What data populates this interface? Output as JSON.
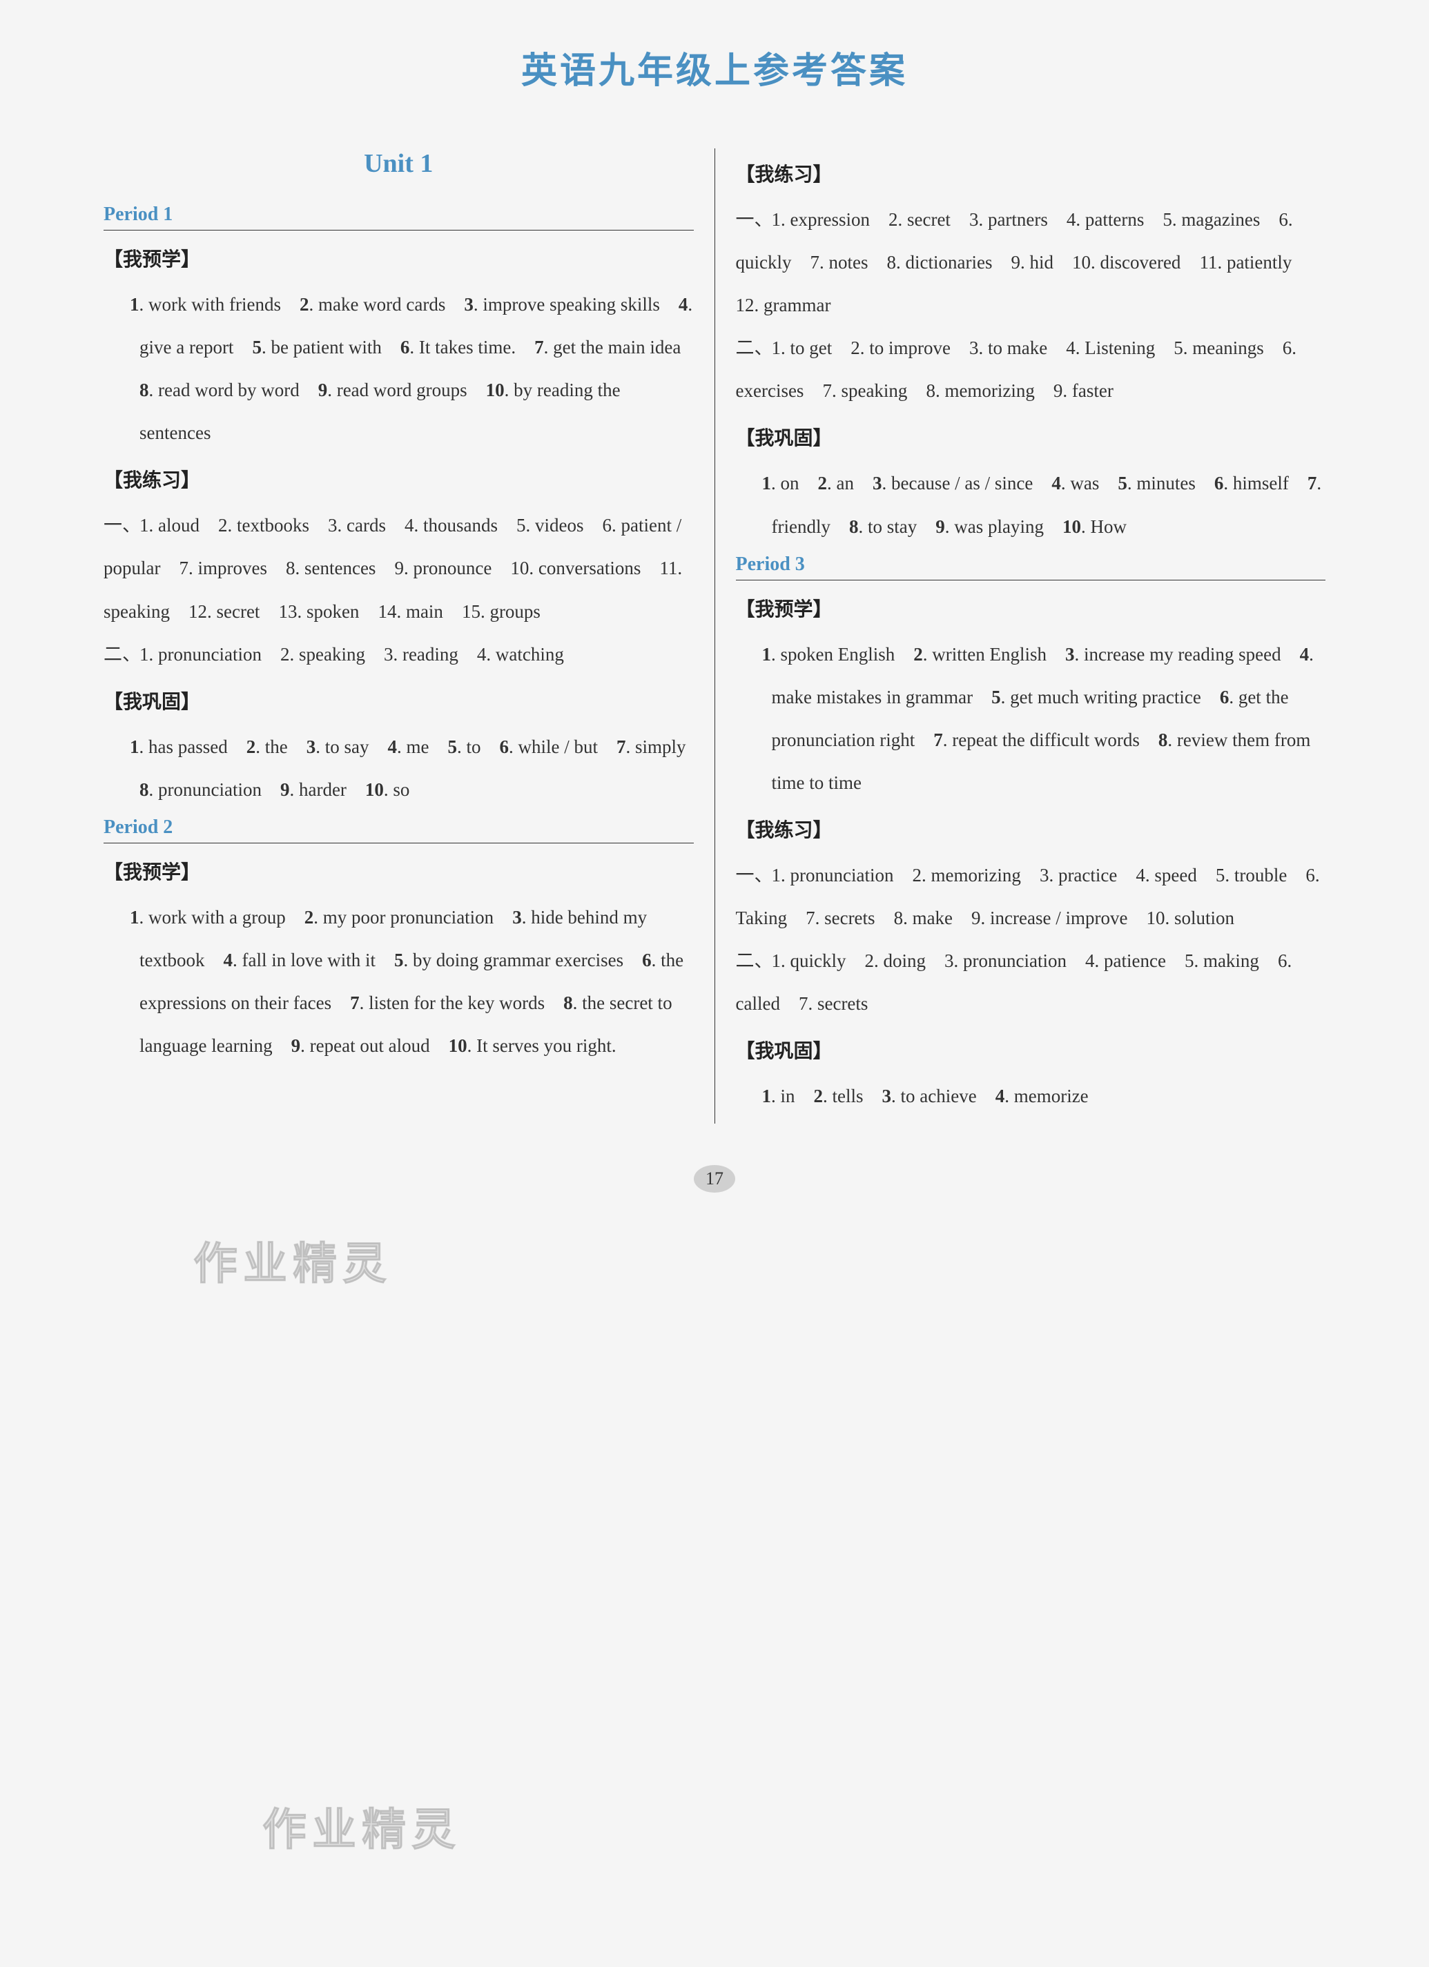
{
  "page_title": "英语九年级上参考答案",
  "page_number": "17",
  "watermark_text": "作业精灵",
  "colors": {
    "heading": "#4a90c2",
    "text": "#333333",
    "background": "#f5f5f5",
    "divider": "#333333"
  },
  "left_column": {
    "unit_title": "Unit 1",
    "sections": [
      {
        "period": "Period 1",
        "blocks": [
          {
            "header": "【我预学】",
            "groups": [
              {
                "prefix": "",
                "text": "1. work with friends　2. make word cards　3. improve speaking skills　4. give a report　5. be patient with　6. It takes time.　7. get the main idea　8. read word by word　9. read word groups　10. by reading the sentences"
              }
            ]
          },
          {
            "header": "【我练习】",
            "groups": [
              {
                "prefix": "一、",
                "text": "1. aloud　2. textbooks　3. cards　4. thousands　5. videos　6. patient / popular　7. improves　8. sentences　9. pronounce　10. conversations　11. speaking　12. secret　13. spoken　14. main　15. groups"
              },
              {
                "prefix": "二、",
                "text": "1. pronunciation　2. speaking　3. reading　4. watching"
              }
            ]
          },
          {
            "header": "【我巩固】",
            "groups": [
              {
                "prefix": "",
                "text": "1. has passed　2. the　3. to say　4. me　5. to　6. while / but　7. simply　8. pronunciation　9. harder　10. so"
              }
            ]
          }
        ]
      },
      {
        "period": "Period 2",
        "blocks": [
          {
            "header": "【我预学】",
            "groups": [
              {
                "prefix": "",
                "text": "1. work with a group　2. my poor pronunciation　3. hide behind my textbook　4. fall in love with it　5. by doing grammar exercises　6. the expressions on their faces　7. listen for the key words　8. the secret to language learning　9. repeat out aloud　10. It serves you right."
              }
            ]
          }
        ]
      }
    ]
  },
  "right_column": {
    "sections": [
      {
        "period": "",
        "blocks": [
          {
            "header": "【我练习】",
            "groups": [
              {
                "prefix": "一、",
                "text": "1. expression　2. secret　3. partners　4. patterns　5. magazines　6. quickly　7. notes　8. dictionaries　9. hid　10. discovered　11. patiently　12. grammar"
              },
              {
                "prefix": "二、",
                "text": "1. to get　2. to improve　3. to make　4. Listening　5. meanings　6. exercises　7. speaking　8. memorizing　9. faster"
              }
            ]
          },
          {
            "header": "【我巩固】",
            "groups": [
              {
                "prefix": "",
                "text": "1. on　2. an　3. because / as / since　4. was　5. minutes　6. himself　7. friendly　8. to stay　9. was playing　10. How"
              }
            ]
          }
        ]
      },
      {
        "period": "Period 3",
        "blocks": [
          {
            "header": "【我预学】",
            "groups": [
              {
                "prefix": "",
                "text": "1. spoken English　2. written English　3. increase my reading speed　4. make mistakes in grammar　5. get much writing practice　6. get the pronunciation right　7. repeat the difficult words　8. review them from time to time"
              }
            ]
          },
          {
            "header": "【我练习】",
            "groups": [
              {
                "prefix": "一、",
                "text": "1. pronunciation　2. memorizing　3. practice　4. speed　5. trouble　6. Taking　7. secrets　8. make　9. increase / improve　10. solution"
              },
              {
                "prefix": "二、",
                "text": "1. quickly　2. doing　3. pronunciation　4. patience　5. making　6. called　7. secrets"
              }
            ]
          },
          {
            "header": "【我巩固】",
            "groups": [
              {
                "prefix": "",
                "text": "1. in　2. tells　3. to achieve　4. memorize"
              }
            ]
          }
        ]
      }
    ]
  }
}
